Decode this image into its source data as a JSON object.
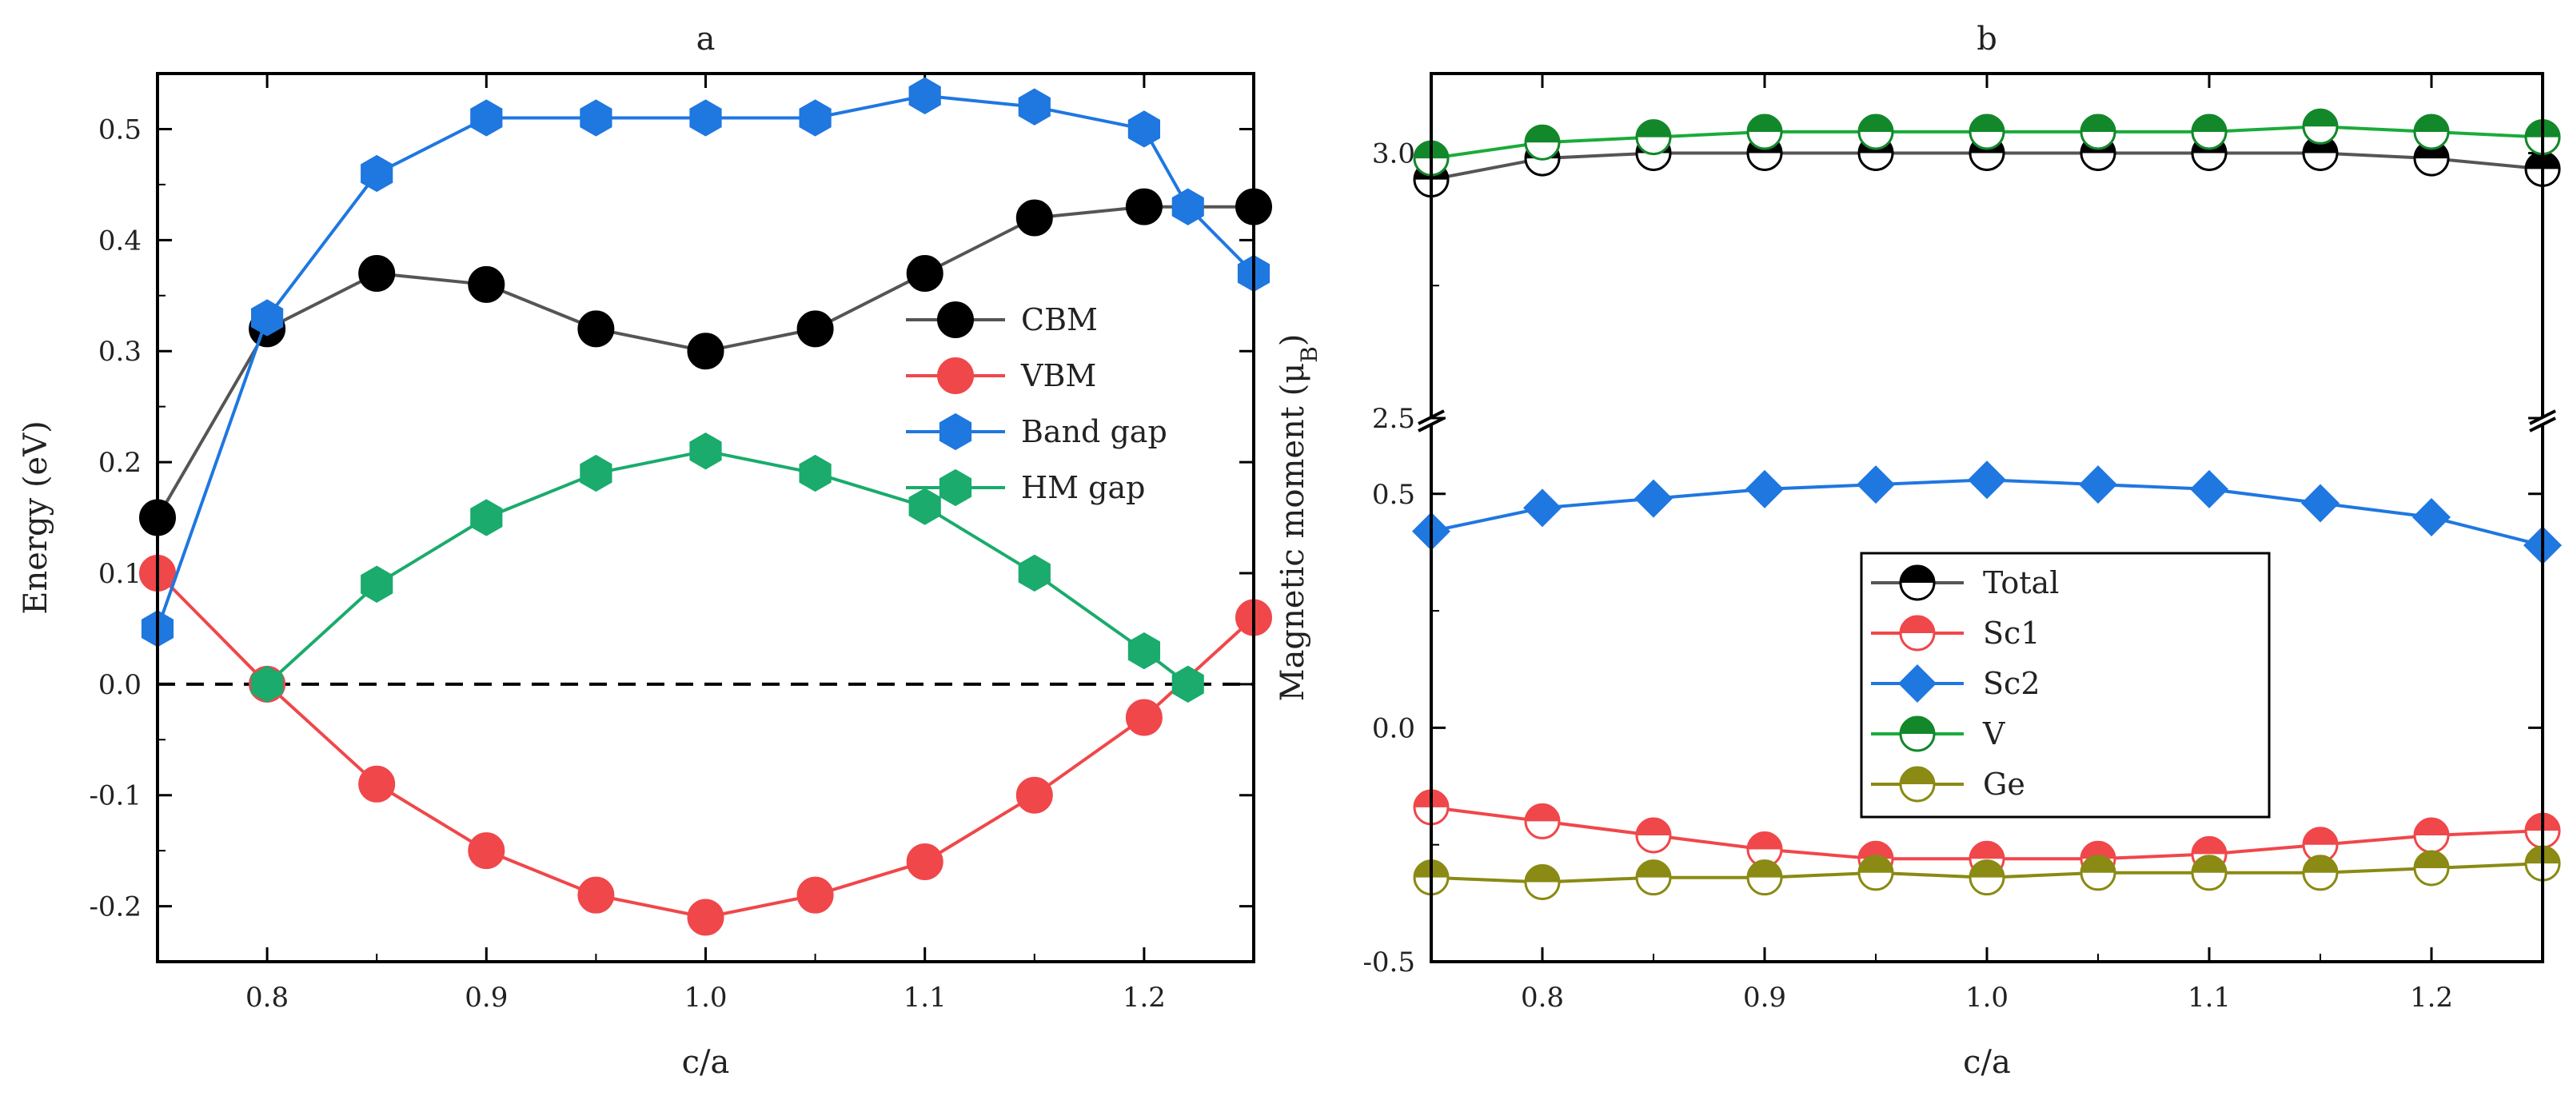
{
  "chart_data": [
    {
      "type": "line",
      "panel": "a",
      "title": "a",
      "xlabel": "c/a",
      "ylabel": "Energy (eV)",
      "xlim": [
        0.75,
        1.25
      ],
      "ylim": [
        -0.25,
        0.55
      ],
      "xticks": [
        0.8,
        0.9,
        1.0,
        1.1,
        1.2
      ],
      "xtick_labels": [
        "0.8",
        "0.9",
        "1.0",
        "1.1",
        "1.2"
      ],
      "yticks": [
        -0.2,
        -0.1,
        0.0,
        0.1,
        0.2,
        0.3,
        0.4,
        0.5
      ],
      "ytick_labels": [
        "-0.2",
        "-0.1",
        "0.0",
        "0.1",
        "0.2",
        "0.3",
        "0.4",
        "0.5"
      ],
      "reference_line": {
        "y": 0.0,
        "style": "dashed",
        "color": "#000000"
      },
      "legend_position": "right",
      "series": [
        {
          "name": "CBM",
          "color": "#000000",
          "line_color": "#555555",
          "marker": "circle",
          "x": [
            0.75,
            0.8,
            0.85,
            0.9,
            0.95,
            1.0,
            1.05,
            1.1,
            1.15,
            1.2,
            1.25
          ],
          "values": [
            0.15,
            0.32,
            0.37,
            0.36,
            0.32,
            0.3,
            0.32,
            0.37,
            0.42,
            0.43,
            0.43
          ]
        },
        {
          "name": "VBM",
          "color": "#f0474a",
          "line_color": "#f0474a",
          "marker": "circle",
          "x": [
            0.75,
            0.8,
            0.85,
            0.9,
            0.95,
            1.0,
            1.05,
            1.1,
            1.15,
            1.2,
            1.25
          ],
          "values": [
            0.1,
            0.0,
            -0.09,
            -0.15,
            -0.19,
            -0.21,
            -0.19,
            -0.16,
            -0.1,
            -0.03,
            0.06
          ]
        },
        {
          "name": "Band gap",
          "color": "#1f77e0",
          "line_color": "#1f77e0",
          "marker": "hexagon",
          "x": [
            0.75,
            0.8,
            0.85,
            0.9,
            0.95,
            1.0,
            1.05,
            1.1,
            1.15,
            1.2,
            1.22,
            1.25
          ],
          "values": [
            0.05,
            0.33,
            0.46,
            0.51,
            0.51,
            0.51,
            0.51,
            0.53,
            0.52,
            0.5,
            0.43,
            0.37
          ]
        },
        {
          "name": "HM gap",
          "color": "#1aab6d",
          "line_color": "#1aab6d",
          "marker": "hexagon",
          "x": [
            0.8,
            0.85,
            0.9,
            0.95,
            1.0,
            1.05,
            1.1,
            1.15,
            1.2,
            1.22
          ],
          "values": [
            0.0,
            0.09,
            0.15,
            0.19,
            0.21,
            0.19,
            0.16,
            0.1,
            0.03,
            0.0
          ]
        }
      ]
    },
    {
      "type": "line",
      "panel": "b",
      "title": "b",
      "xlabel": "c/a",
      "ylabel": "Magnetic moment (μB)",
      "ylabel_main": "Magnetic moment (μ",
      "ylabel_sub": "B",
      "ylabel_close": ")",
      "xlim": [
        0.75,
        1.25
      ],
      "axis_break": {
        "lower_range": [
          -0.5,
          0.65
        ],
        "upper_range": [
          2.5,
          3.15
        ]
      },
      "xticks": [
        0.8,
        0.9,
        1.0,
        1.1,
        1.2
      ],
      "xtick_labels": [
        "0.8",
        "0.9",
        "1.0",
        "1.1",
        "1.2"
      ],
      "yticks": [
        -0.5,
        0.0,
        0.5,
        2.5,
        3.0
      ],
      "ytick_labels": [
        "-0.5",
        "0.0",
        "0.5",
        "2.5",
        "3.0"
      ],
      "legend_position": "center",
      "series": [
        {
          "name": "Total",
          "color": "#000000",
          "line_color": "#555555",
          "marker": "half-circle",
          "x": [
            0.75,
            0.8,
            0.85,
            0.9,
            0.95,
            1.0,
            1.05,
            1.1,
            1.15,
            1.2,
            1.25
          ],
          "values": [
            2.95,
            2.99,
            3.0,
            3.0,
            3.0,
            3.0,
            3.0,
            3.0,
            3.0,
            2.99,
            2.97
          ]
        },
        {
          "name": "Sc1",
          "color": "#f0474a",
          "line_color": "#f0474a",
          "marker": "half-circle",
          "x": [
            0.75,
            0.8,
            0.85,
            0.9,
            0.95,
            1.0,
            1.05,
            1.1,
            1.15,
            1.2,
            1.25
          ],
          "values": [
            -0.17,
            -0.2,
            -0.23,
            -0.26,
            -0.28,
            -0.28,
            -0.28,
            -0.27,
            -0.25,
            -0.23,
            -0.22
          ]
        },
        {
          "name": "Sc2",
          "color": "#1f77e0",
          "line_color": "#1f77e0",
          "marker": "diamond",
          "x": [
            0.75,
            0.8,
            0.85,
            0.9,
            0.95,
            1.0,
            1.05,
            1.1,
            1.15,
            1.2,
            1.25
          ],
          "values": [
            0.42,
            0.47,
            0.49,
            0.51,
            0.52,
            0.53,
            0.52,
            0.51,
            0.48,
            0.45,
            0.39
          ]
        },
        {
          "name": "V",
          "color": "#12882a",
          "line_color": "#1aab3a",
          "marker": "half-circle",
          "x": [
            0.75,
            0.8,
            0.85,
            0.9,
            0.95,
            1.0,
            1.05,
            1.1,
            1.15,
            1.2,
            1.25
          ],
          "values": [
            2.99,
            3.02,
            3.03,
            3.04,
            3.04,
            3.04,
            3.04,
            3.04,
            3.05,
            3.04,
            3.03
          ]
        },
        {
          "name": "Ge",
          "color": "#8a8a14",
          "line_color": "#8a8a14",
          "marker": "half-circle",
          "x": [
            0.75,
            0.8,
            0.85,
            0.9,
            0.95,
            1.0,
            1.05,
            1.1,
            1.15,
            1.2,
            1.25
          ],
          "values": [
            -0.32,
            -0.33,
            -0.32,
            -0.32,
            -0.31,
            -0.32,
            -0.31,
            -0.31,
            -0.31,
            -0.3,
            -0.29
          ]
        }
      ]
    }
  ]
}
